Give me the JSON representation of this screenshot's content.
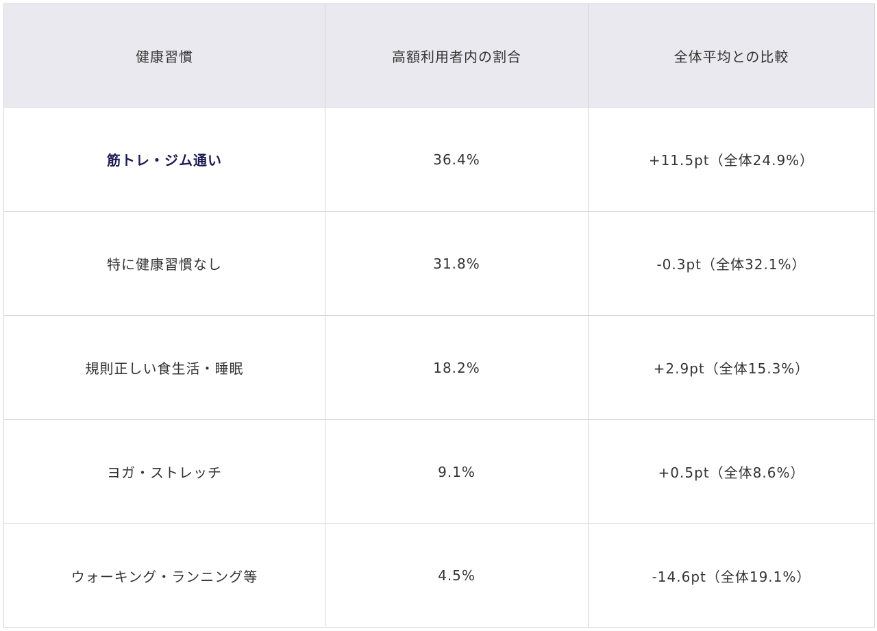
{
  "table": {
    "headers": [
      "健康習慣",
      "高額利用者内の割合",
      "全体平均との比較"
    ],
    "rows": [
      {
        "habit": "筋トレ・ジム通い",
        "share": "36.4%",
        "comparison": "+11.5pt（全体24.9%）",
        "highlight": true
      },
      {
        "habit": "特に健康習慣なし",
        "share": "31.8%",
        "comparison": "-0.3pt（全体32.1%）",
        "highlight": false
      },
      {
        "habit": "規則正しい食生活・睡眠",
        "share": "18.2%",
        "comparison": "+2.9pt（全体15.3%）",
        "highlight": false
      },
      {
        "habit": "ヨガ・ストレッチ",
        "share": "9.1%",
        "comparison": "+0.5pt（全体8.6%）",
        "highlight": false
      },
      {
        "habit": "ウォーキング・ランニング等",
        "share": "4.5%",
        "comparison": "-14.6pt（全体19.1%）",
        "highlight": false
      }
    ]
  },
  "colors": {
    "header_bg": "#e9e9ef",
    "border": "#d6d6d6",
    "highlight_text": "#1c1a57",
    "text": "#333333"
  }
}
